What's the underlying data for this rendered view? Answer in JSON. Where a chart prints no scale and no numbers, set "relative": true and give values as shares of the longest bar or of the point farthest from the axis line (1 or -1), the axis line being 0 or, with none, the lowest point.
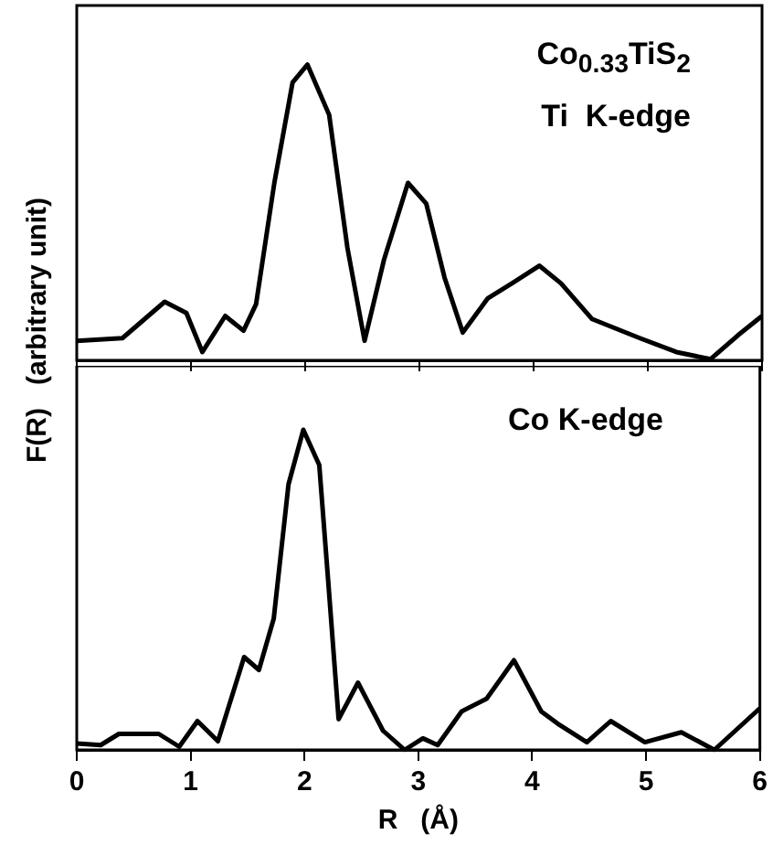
{
  "chart_data": [
    {
      "type": "line",
      "relative": true,
      "ylabel": "F(R)   (arbitrary unit)",
      "annotations": [
        "Co$_{0.33}$TiS$_{2}$",
        "Ti  K-edge"
      ],
      "xlim": [
        0,
        6
      ],
      "xticks": [
        0,
        1,
        2,
        3,
        4,
        5,
        6
      ],
      "tick_labels": false,
      "grid": false,
      "legend": false,
      "marker": "none",
      "line_style": "solid",
      "series": [
        {
          "color": "#000000",
          "x": [
            0,
            0.4,
            0.77,
            0.96,
            1.1,
            1.3,
            1.46,
            1.57,
            1.73,
            1.89,
            2.02,
            2.21,
            2.37,
            2.52,
            2.69,
            2.9,
            3.06,
            3.22,
            3.38,
            3.6,
            3.81,
            4.05,
            4.24,
            4.51,
            4.93,
            5.25,
            5.55,
            5.79,
            6
          ],
          "values": [
            0.066,
            0.075,
            0.198,
            0.16,
            0.028,
            0.15,
            0.1,
            0.19,
            0.6,
            0.94,
            1,
            0.83,
            0.38,
            0.066,
            0.34,
            0.6,
            0.53,
            0.28,
            0.094,
            0.21,
            0.26,
            0.32,
            0.26,
            0.14,
            0.075,
            0.028,
            0.004,
            0.085,
            0.15
          ]
        }
      ]
    },
    {
      "type": "line",
      "relative": true,
      "xlabel": "R   (Å)",
      "annotations": [
        "Co K-edge"
      ],
      "xlim": [
        0,
        6
      ],
      "xticks": [
        0,
        1,
        2,
        3,
        4,
        5,
        6
      ],
      "tick_labels": "x",
      "grid": false,
      "legend": false,
      "marker": "none",
      "line_style": "solid",
      "series": [
        {
          "color": "#000000",
          "x": [
            0,
            0.21,
            0.37,
            0.72,
            0.9,
            1.06,
            1.24,
            1.47,
            1.6,
            1.73,
            1.86,
            1.99,
            2.13,
            2.21,
            2.3,
            2.47,
            2.69,
            2.88,
            3.04,
            3.17,
            3.38,
            3.6,
            3.84,
            4.08,
            4.24,
            4.48,
            4.69,
            4.99,
            5.31,
            5.6,
            6
          ],
          "values": [
            0.02,
            0.015,
            0.05,
            0.05,
            0.01,
            0.09,
            0.027,
            0.29,
            0.25,
            0.41,
            0.83,
            1,
            0.89,
            0.52,
            0.096,
            0.21,
            0.06,
            0,
            0.036,
            0.015,
            0.12,
            0.16,
            0.28,
            0.12,
            0.078,
            0.024,
            0.09,
            0.024,
            0.055,
            0,
            0.13
          ]
        }
      ]
    }
  ]
}
